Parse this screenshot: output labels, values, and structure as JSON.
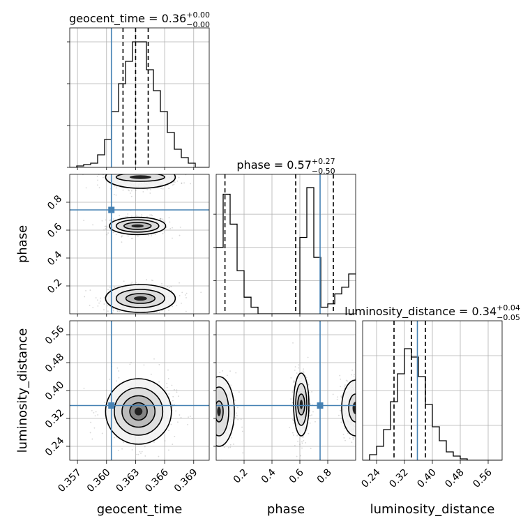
{
  "chart_data": {
    "type": "corner",
    "parameters": [
      "geocent_time",
      "phase",
      "luminosity_distance"
    ],
    "truth": {
      "geocent_time": 0.3605,
      "phase": 0.745,
      "luminosity_distance": 0.357
    },
    "colors": {
      "truth": "#4682b4",
      "hist": "#000000",
      "grid": "#b0b0b0",
      "scatter": "#8c8c8c"
    },
    "titles": [
      {
        "param": "geocent_time",
        "text": "geocent_time = 0.36",
        "sup": "+0.00",
        "sub": "−0.00"
      },
      {
        "param": "phase",
        "text": "phase = 0.57",
        "sup": "+0.27",
        "sub": "−0.50"
      },
      {
        "param": "luminosity_distance",
        "text": "luminosity_distance = 0.34",
        "sup": "+0.04",
        "sub": "−0.05"
      }
    ],
    "axes": {
      "geocent_time": {
        "range": [
          0.3562,
          0.3706
        ],
        "ticks": [
          0.357,
          0.36,
          0.363,
          0.366,
          0.369
        ],
        "tick_labels": [
          "0.357",
          "0.360",
          "0.363",
          "0.366",
          "0.369"
        ]
      },
      "phase": {
        "range": [
          0.0,
          1.0
        ],
        "ticks": [
          0.2,
          0.4,
          0.6,
          0.8
        ],
        "tick_labels": [
          "0.2",
          "0.4",
          "0.6",
          "0.8"
        ]
      },
      "luminosity_distance": {
        "range": [
          0.2,
          0.6
        ],
        "ticks": [
          0.24,
          0.32,
          0.4,
          0.48,
          0.56
        ],
        "tick_labels": [
          "0.24",
          "0.32",
          "0.40",
          "0.48",
          "0.56"
        ]
      }
    },
    "hist_geocent_time": {
      "edges_start": 0.3562,
      "bin_width": 0.00072,
      "counts": [
        0,
        1,
        2,
        3,
        9,
        20,
        40,
        60,
        76,
        90,
        90,
        70,
        55,
        40,
        25,
        13,
        7,
        3,
        0,
        0
      ],
      "quantiles": [
        0.3617,
        0.363,
        0.3643
      ],
      "ylim": [
        0,
        100
      ]
    },
    "hist_phase": {
      "edges_start": 0.0,
      "bin_width": 0.05,
      "counts": [
        20,
        36,
        27,
        13,
        5,
        2,
        0,
        0,
        0,
        0,
        0,
        0,
        23,
        38,
        17,
        2,
        3,
        6,
        8,
        12
      ],
      "quantiles": [
        0.063,
        0.57,
        0.84
      ],
      "ylim": [
        0,
        42
      ]
    },
    "hist_luminosity_distance": {
      "edges_start": 0.2,
      "bin_width": 0.02,
      "counts": [
        0,
        4,
        10,
        22,
        42,
        62,
        80,
        74,
        60,
        40,
        24,
        14,
        6,
        3,
        1,
        0,
        0,
        0,
        0,
        0
      ],
      "quantiles": [
        0.29,
        0.34,
        0.38
      ],
      "ylim": [
        0,
        100
      ]
    },
    "contours_phase_vs_geocent_time": [
      {
        "cx": 0.3632,
        "cy": 0.63,
        "levels": [
          [
            0.0014,
            0.025
          ],
          [
            0.0022,
            0.044
          ],
          [
            0.0029,
            0.062
          ]
        ]
      },
      {
        "cx": 0.3635,
        "cy": 0.11,
        "levels": [
          [
            0.0015,
            0.035
          ],
          [
            0.0025,
            0.065
          ],
          [
            0.0036,
            0.1
          ]
        ]
      },
      {
        "cx": 0.3635,
        "cy": 0.98,
        "levels": [
          [
            0.0025,
            0.03
          ],
          [
            0.0036,
            0.08
          ]
        ]
      }
    ],
    "contours_luminosity_distance_vs_geocent_time": [
      {
        "cx": 0.3633,
        "cy": 0.34,
        "levels": [
          [
            0.0009,
            0.025
          ],
          [
            0.0017,
            0.045
          ],
          [
            0.0025,
            0.068
          ],
          [
            0.0034,
            0.094
          ]
        ]
      }
    ],
    "contours_luminosity_distance_vs_phase": [
      {
        "cx": 0.02,
        "cy": 0.34,
        "levels": [
          [
            0.03,
            0.03
          ],
          [
            0.07,
            0.07
          ],
          [
            0.11,
            0.1
          ]
        ]
      },
      {
        "cx": 0.61,
        "cy": 0.36,
        "levels": [
          [
            0.025,
            0.03
          ],
          [
            0.04,
            0.06
          ],
          [
            0.055,
            0.09
          ]
        ]
      },
      {
        "cx": 1.0,
        "cy": 0.35,
        "levels": [
          [
            0.05,
            0.04
          ],
          [
            0.1,
            0.08
          ]
        ]
      }
    ]
  }
}
